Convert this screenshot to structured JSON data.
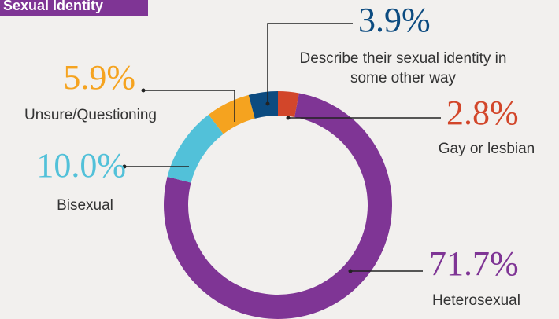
{
  "chart_data": {
    "type": "pie",
    "donut": true,
    "title": "Sexual Identity",
    "categories": [
      "Gay or lesbian",
      "Heterosexual",
      "Bisexual",
      "Unsure/Questioning",
      "Describe their sexual identity in some other way"
    ],
    "values": [
      2.8,
      71.7,
      10.0,
      5.9,
      3.9
    ],
    "value_labels": [
      "2.8%",
      "71.7%",
      "10.0%",
      "5.9%",
      "3.9%"
    ],
    "colors": [
      "#d2462a",
      "#7f3595",
      "#52c1d9",
      "#f5a31f",
      "#0c4b80"
    ]
  }
}
